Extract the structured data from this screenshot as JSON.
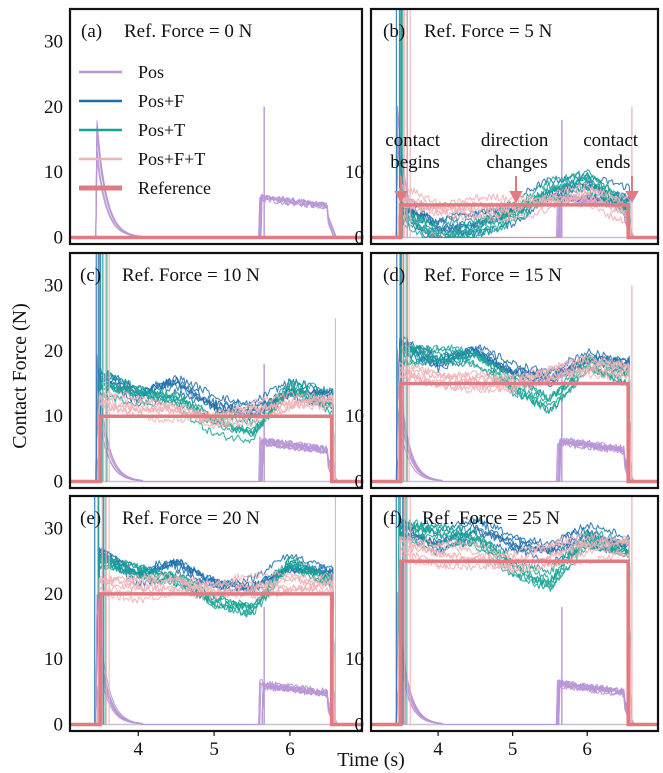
{
  "chart_data": {
    "type": "line",
    "xlabel": "Time (s)",
    "ylabel": "Contact Force (N)",
    "xlim": [
      3.1,
      6.95
    ],
    "ylim": [
      -1,
      35
    ],
    "xticks": [
      4,
      5,
      6
    ],
    "yticks": [
      0,
      10,
      20,
      30
    ],
    "legend": {
      "placement": "top-left of panel (a)",
      "entries": [
        "Pos",
        "Pos+F",
        "Pos+T",
        "Pos+F+T",
        "Reference"
      ]
    },
    "colors": {
      "Pos": "#b996d6",
      "Pos+F": "#1f6fae",
      "Pos+T": "#16a394",
      "Pos+F+T": "#f0b0b4",
      "Reference": "#e07b82"
    },
    "annotations": [
      {
        "panel": 1,
        "lines": [
          "contact",
          "begins"
        ],
        "x": 3.5
      },
      {
        "panel": 1,
        "lines": [
          "direction",
          "changes"
        ],
        "x": 5.0
      },
      {
        "panel": 1,
        "lines": [
          "contact",
          "ends"
        ],
        "x": 6.55
      }
    ],
    "panels": [
      {
        "label": "(a)",
        "title": "Ref. Force = 0 N",
        "ref_force": 0
      },
      {
        "label": "(b)",
        "title": "Ref. Force = 5 N",
        "ref_force": 5
      },
      {
        "label": "(c)",
        "title": "Ref. Force = 10 N",
        "ref_force": 10
      },
      {
        "label": "(d)",
        "title": "Ref. Force = 15 N",
        "ref_force": 15
      },
      {
        "label": "(e)",
        "title": "Ref. Force = 20 N",
        "ref_force": 20
      },
      {
        "label": "(f)",
        "title": "Ref. Force = 25 N",
        "ref_force": 25
      }
    ],
    "series": [
      {
        "name": "Reference",
        "description": "step from 0 to reference force at contact begin (3.5 s), back to 0 at contact end (6.55 s)"
      },
      {
        "name": "Pos",
        "approx_values": {
          "x": [
            3.5,
            3.6,
            3.8,
            4.0,
            5.6,
            5.7,
            6.0,
            6.3,
            6.5
          ],
          "y": [
            30,
            10,
            2,
            0,
            0,
            5,
            5,
            4,
            0
          ]
        }
      },
      {
        "name": "Pos+F",
        "approx_values_panel_f": {
          "x": [
            3.6,
            4.0,
            4.5,
            5.0,
            5.5,
            6.0,
            6.5
          ],
          "y": [
            28,
            29,
            30,
            27,
            24,
            27,
            26
          ]
        }
      },
      {
        "name": "Pos+T",
        "approx_values_panel_f": {
          "x": [
            3.6,
            4.0,
            4.5,
            5.0,
            5.5,
            6.0,
            6.5
          ],
          "y": [
            27,
            29,
            28,
            23,
            18,
            24,
            27
          ]
        }
      },
      {
        "name": "Pos+F+T",
        "approx_values_panel_f": {
          "x": [
            3.6,
            4.0,
            4.5,
            5.0,
            5.5,
            6.0,
            6.5
          ],
          "y": [
            26,
            26,
            25,
            24,
            25,
            27,
            27
          ]
        }
      }
    ]
  }
}
